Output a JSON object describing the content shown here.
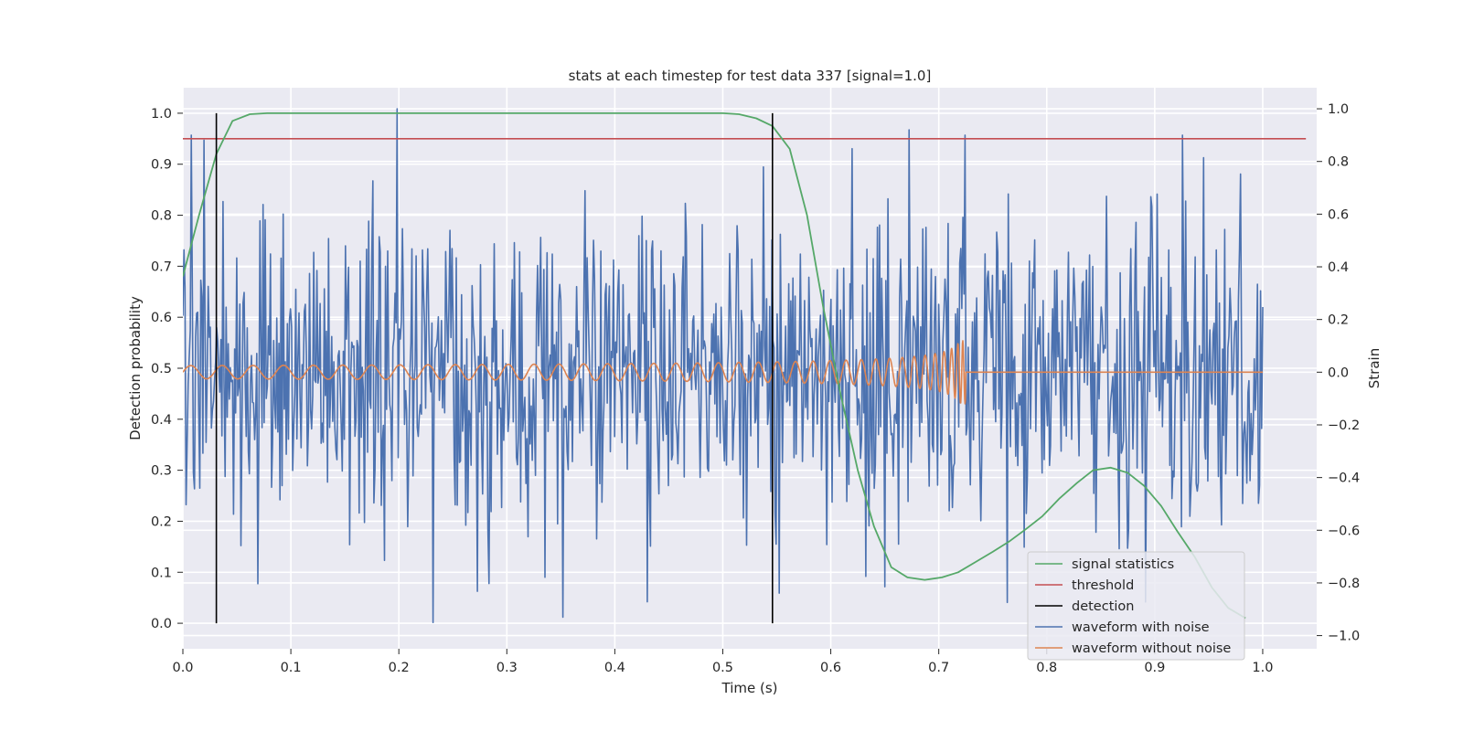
{
  "chart_data": {
    "type": "line",
    "title": "stats at each timestep for test data 337 [signal=1.0]",
    "xlabel": "Time (s)",
    "ylabel": "Detection probability",
    "y2label": "Strain",
    "xlim": [
      0.0,
      1.05
    ],
    "ylim": [
      -0.05,
      1.05
    ],
    "y2lim": [
      -1.05,
      1.08
    ],
    "xticks": [
      "0.0",
      "0.1",
      "0.2",
      "0.3",
      "0.4",
      "0.5",
      "0.6",
      "0.7",
      "0.8",
      "0.9",
      "1.0"
    ],
    "yticks": [
      "0.0",
      "0.1",
      "0.2",
      "0.3",
      "0.4",
      "0.5",
      "0.6",
      "0.7",
      "0.8",
      "0.9",
      "1.0"
    ],
    "y2ticks": [
      "−1.0",
      "−0.8",
      "−0.6",
      "−0.4",
      "−0.2",
      "0.0",
      "0.2",
      "0.4",
      "0.6",
      "0.8",
      "1.0"
    ],
    "grid": true,
    "legend_position": "bottom-right",
    "colors": {
      "signal": "#55a868",
      "threshold": "#c44e52",
      "detection": "#000000",
      "noisy": "#4c72b0",
      "clean": "#dd8452",
      "axes_bg": "#eaeaf2",
      "grid": "#ffffff"
    },
    "series": [
      {
        "name": "signal statistics",
        "axis": "left",
        "x": [
          0.0,
          0.015,
          0.031,
          0.046,
          0.062,
          0.078,
          0.1,
          0.2,
          0.3,
          0.4,
          0.5,
          0.515,
          0.531,
          0.546,
          0.562,
          0.578,
          0.593,
          0.609,
          0.625,
          0.64,
          0.656,
          0.671,
          0.687,
          0.703,
          0.718,
          0.734,
          0.75,
          0.765,
          0.781,
          0.796,
          0.812,
          0.828,
          0.843,
          0.859,
          0.875,
          0.89,
          0.906,
          0.921,
          0.937,
          0.953,
          0.968,
          0.984
        ],
        "y": [
          0.68,
          0.8,
          0.92,
          0.985,
          0.998,
          1.0,
          1.0,
          1.0,
          1.0,
          1.0,
          1.0,
          0.998,
          0.99,
          0.975,
          0.93,
          0.8,
          0.62,
          0.45,
          0.3,
          0.19,
          0.11,
          0.09,
          0.085,
          0.09,
          0.1,
          0.12,
          0.14,
          0.16,
          0.185,
          0.21,
          0.245,
          0.275,
          0.3,
          0.305,
          0.295,
          0.27,
          0.23,
          0.18,
          0.13,
          0.07,
          0.03,
          0.01
        ]
      },
      {
        "name": "threshold",
        "axis": "left",
        "x": [
          0.0,
          1.04
        ],
        "y": [
          0.95,
          0.95
        ]
      },
      {
        "name": "detection",
        "axis": "left",
        "segments": [
          {
            "x": 0.031,
            "y": [
              0.0,
              1.0
            ]
          },
          {
            "x": 0.546,
            "y": [
              0.0,
              1.0
            ]
          }
        ]
      },
      {
        "name": "waveform with noise",
        "axis": "right",
        "x_range": [
          0.0,
          1.0
        ],
        "n_points": 1024,
        "amplitude_range": [
          -0.95,
          1.0
        ],
        "peaks": [
          {
            "x": 0.198,
            "y": 1.0
          },
          {
            "x": 0.673,
            "y": 0.92
          },
          {
            "x": 0.232,
            "y": -0.95
          },
          {
            "x": 0.352,
            "y": -0.93
          }
        ]
      },
      {
        "name": "waveform without noise",
        "axis": "right",
        "x_range": [
          0.0,
          1.0
        ],
        "merger_time": 0.725,
        "initial_amplitude": 0.025,
        "peak_amplitude": 0.12,
        "initial_frequency_hz": 34
      }
    ]
  }
}
